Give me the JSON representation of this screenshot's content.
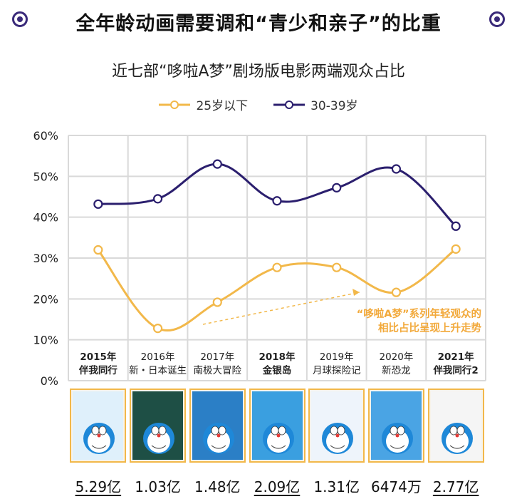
{
  "banner": {
    "title": "全年龄动画需要调和“青少和亲子”的比重",
    "icon": "circle-target-icon",
    "icon_color": "#3a2a7a"
  },
  "chart_data": {
    "type": "line",
    "title": "近七部“哆啦A梦”剧场版电影两端观众占比",
    "categories": [
      {
        "year": "2015年",
        "name": "伴我同行",
        "bold": true
      },
      {
        "year": "2016年",
        "name": "新・日本诞生",
        "bold": false
      },
      {
        "year": "2017年",
        "name": "南极大冒险",
        "bold": false
      },
      {
        "year": "2018年",
        "name": "金银岛",
        "bold": true
      },
      {
        "year": "2019年",
        "name": "月球探险记",
        "bold": false
      },
      {
        "year": "2020年",
        "name": "新恐龙",
        "bold": false
      },
      {
        "year": "2021年",
        "name": "伴我同行2",
        "bold": true
      }
    ],
    "series": [
      {
        "name": "25岁以下",
        "color": "#f2b84a",
        "values": [
          32,
          12.8,
          19.2,
          27.7,
          27.7,
          21.6,
          32.2
        ]
      },
      {
        "name": "30-39岁",
        "color": "#2b1f6e",
        "values": [
          43.2,
          44.5,
          53,
          44,
          47.2,
          51.8,
          37.8
        ]
      }
    ],
    "yticks": [
      "0%",
      "10%",
      "20%",
      "30%",
      "40%",
      "50%",
      "60%"
    ],
    "ylim": [
      0,
      60
    ],
    "annotation": [
      "“哆啦A梦”系列年轻观众的",
      "相比占比呈现上升走势"
    ],
    "annotation_color": "#f2a93b",
    "grid": true,
    "legend_position": "top-center"
  },
  "posters": [
    {
      "name": "poster-2015",
      "box_office": "5.29亿",
      "underline": true,
      "bg": "#dff0fb"
    },
    {
      "name": "poster-2016",
      "box_office": "1.03亿",
      "underline": false,
      "bg": "#1e4f45"
    },
    {
      "name": "poster-2017",
      "box_office": "1.48亿",
      "underline": false,
      "bg": "#2b7fc6"
    },
    {
      "name": "poster-2018",
      "box_office": "2.09亿",
      "underline": true,
      "bg": "#3a9fe0"
    },
    {
      "name": "poster-2019",
      "box_office": "1.31亿",
      "underline": false,
      "bg": "#eef4fb"
    },
    {
      "name": "poster-2020",
      "box_office": "6474万",
      "underline": false,
      "bg": "#4aa4e4"
    },
    {
      "name": "poster-2021",
      "box_office": "2.77亿",
      "underline": true,
      "bg": "#f5f5f5"
    }
  ]
}
